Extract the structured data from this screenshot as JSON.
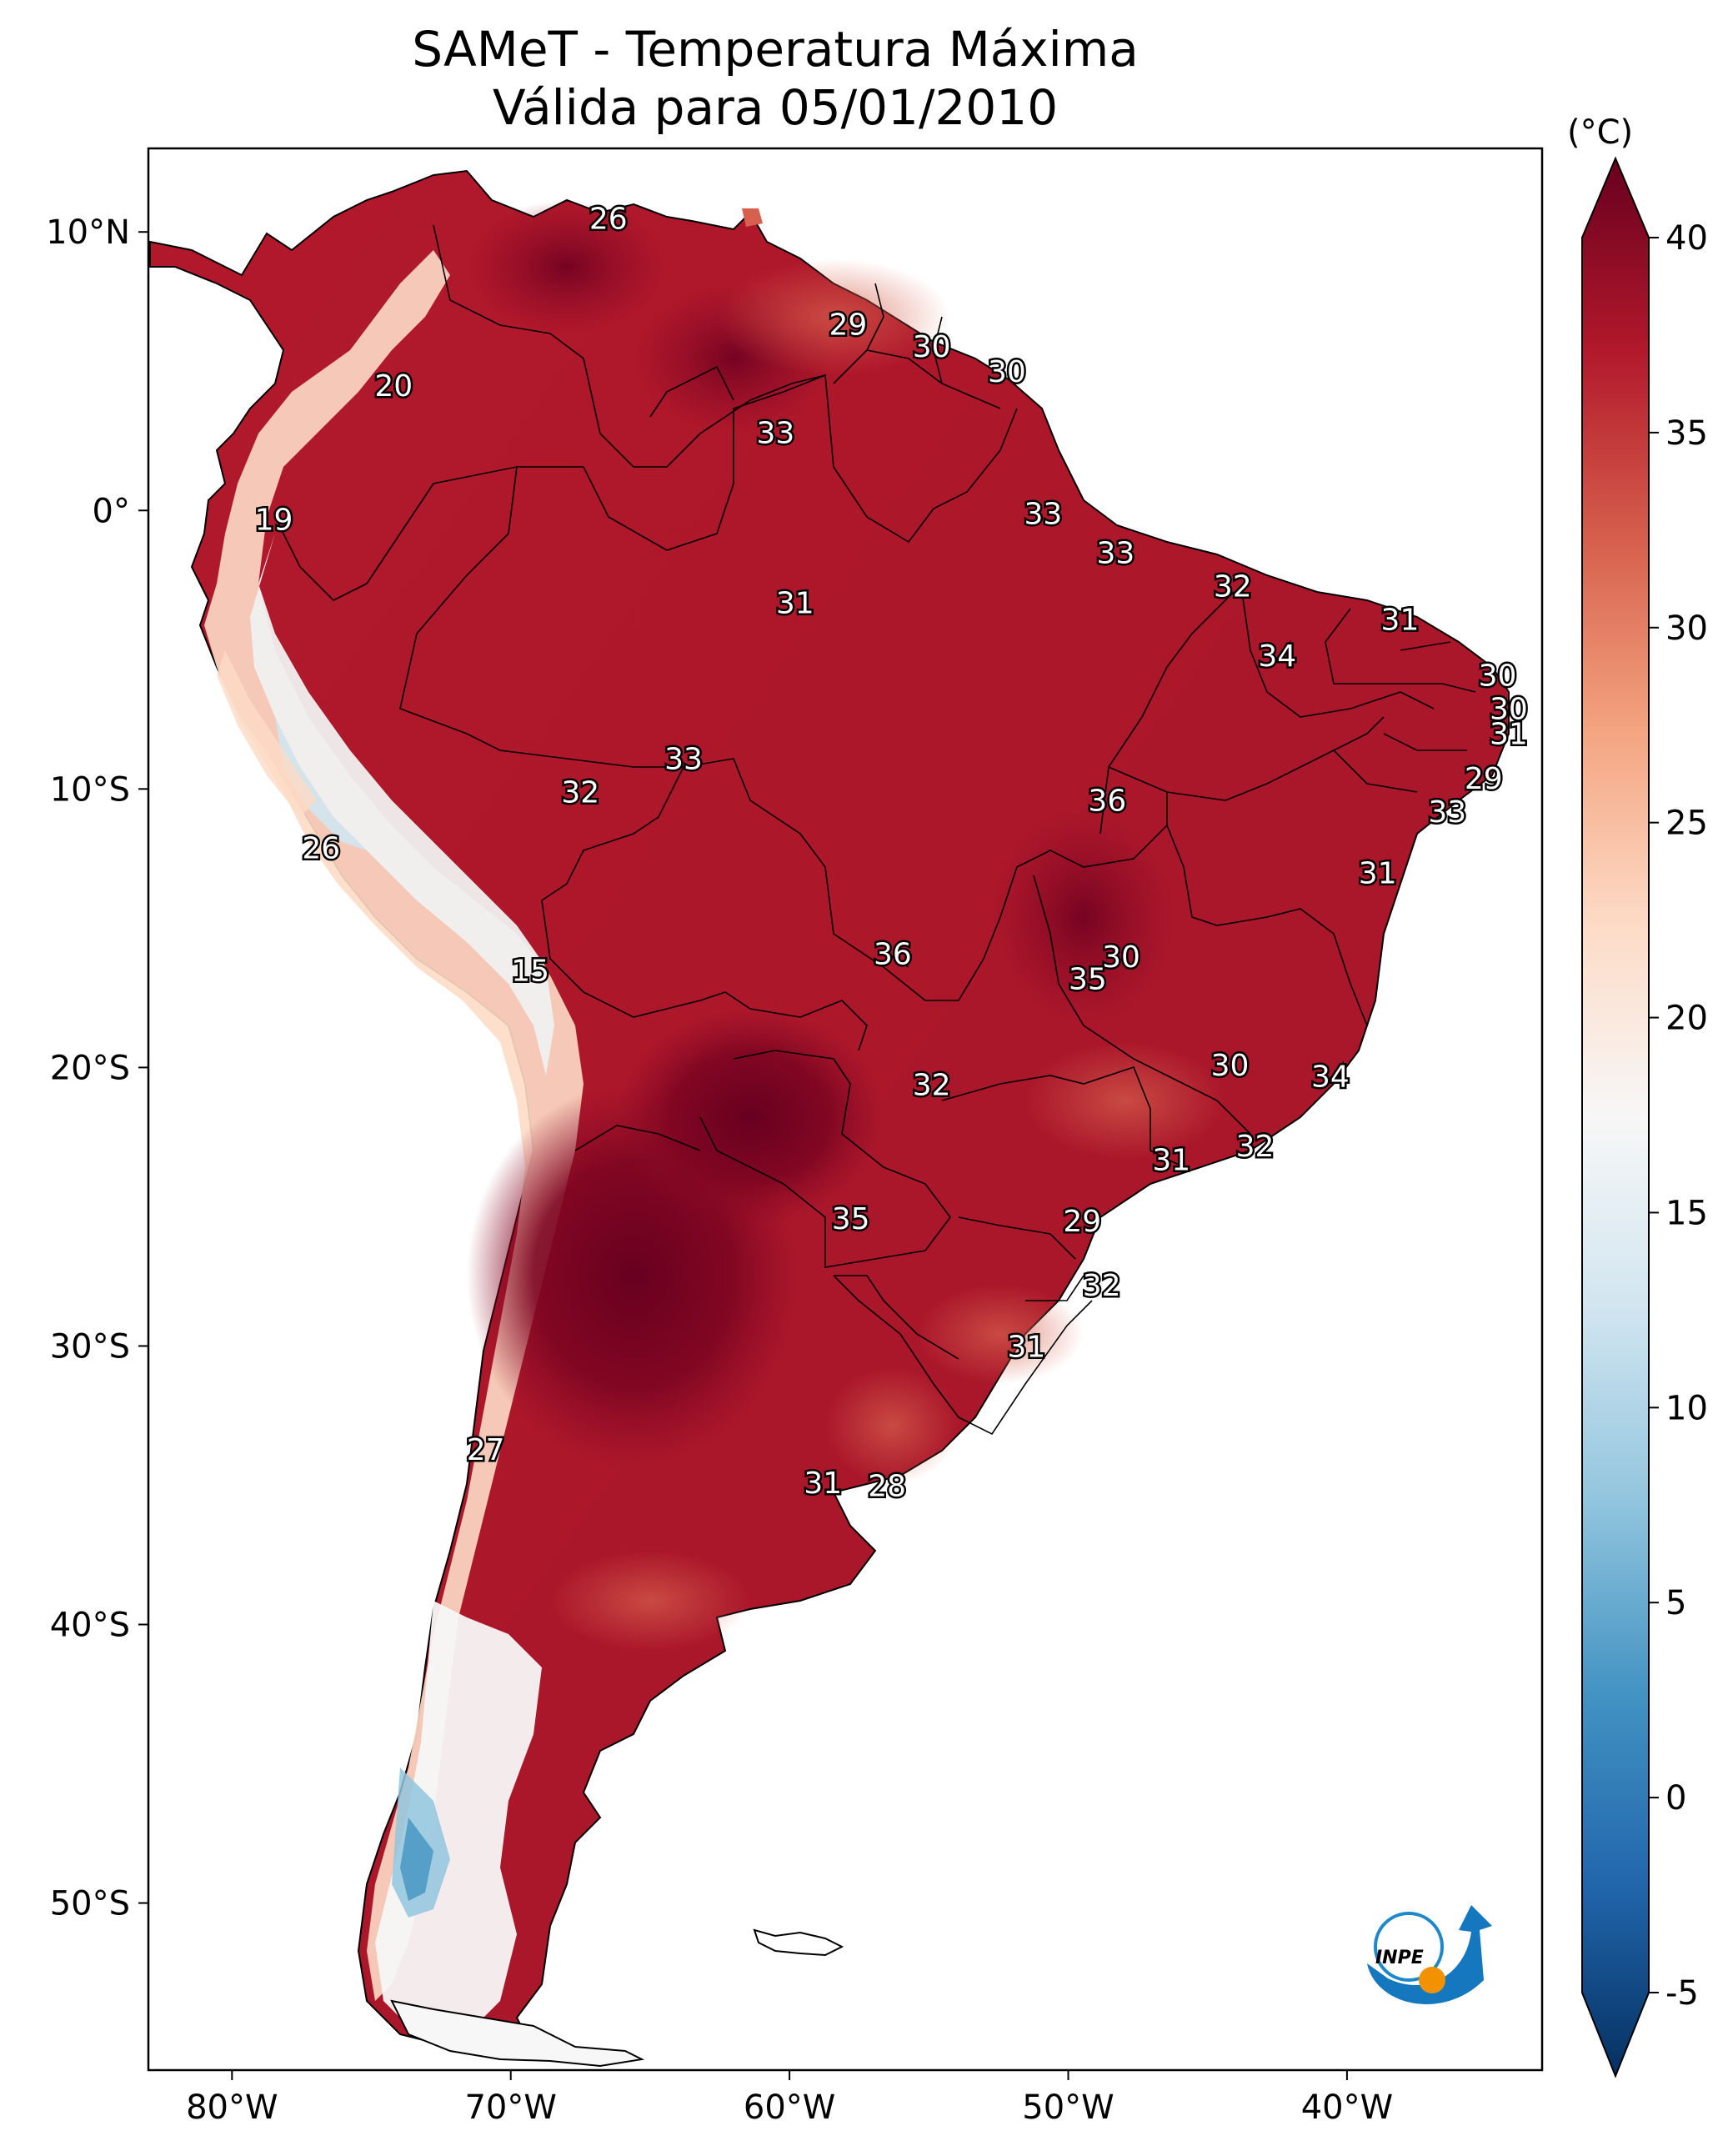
{
  "title": "SAMeT - Temperatura Máxima",
  "subtitle": "Válida para 05/01/2010",
  "colorbar": {
    "unit": "(°C)",
    "ticks": [
      40,
      35,
      30,
      25,
      20,
      15,
      10,
      5,
      0,
      -5
    ],
    "tick_labels": [
      "40",
      "35",
      "30",
      "25",
      "20",
      "15",
      "10",
      "5",
      "0",
      "-5"
    ],
    "range": [
      -5,
      40
    ],
    "colors": [
      "#053061",
      "#2166ac",
      "#4393c3",
      "#92c5de",
      "#d1e5f0",
      "#f7f7f7",
      "#fddbc7",
      "#f4a582",
      "#d6604d",
      "#b2182b",
      "#67001f"
    ]
  },
  "axes": {
    "lon_labels": [
      "80°W",
      "70°W",
      "60°W",
      "50°W",
      "40°W"
    ],
    "lon_values": [
      -80,
      -70,
      -60,
      -50,
      -40
    ],
    "lat_labels": [
      "10°N",
      "0°",
      "10°S",
      "20°S",
      "30°S",
      "40°S",
      "50°S"
    ],
    "lat_values": [
      10,
      0,
      -10,
      -20,
      -30,
      -40,
      -50
    ],
    "lon_range": [
      -83,
      -33
    ],
    "lat_range": [
      -56,
      13
    ]
  },
  "contour_labels": [
    {
      "text": "26",
      "lon": -66.5,
      "lat": 10.5
    },
    {
      "text": "29",
      "lon": -57.9,
      "lat": 6.7
    },
    {
      "text": "30",
      "lon": -54.9,
      "lat": 5.9
    },
    {
      "text": "30",
      "lon": -52.2,
      "lat": 5.0
    },
    {
      "text": "20",
      "lon": -74.2,
      "lat": 4.5
    },
    {
      "text": "33",
      "lon": -60.5,
      "lat": 2.8
    },
    {
      "text": "19",
      "lon": -78.5,
      "lat": -0.3
    },
    {
      "text": "33",
      "lon": -50.9,
      "lat": -0.1
    },
    {
      "text": "33",
      "lon": -48.3,
      "lat": -1.5
    },
    {
      "text": "32",
      "lon": -44.1,
      "lat": -2.7
    },
    {
      "text": "31",
      "lon": -59.8,
      "lat": -3.3
    },
    {
      "text": "31",
      "lon": -38.1,
      "lat": -3.9
    },
    {
      "text": "34",
      "lon": -42.5,
      "lat": -5.2
    },
    {
      "text": "30",
      "lon": -34.6,
      "lat": -5.9
    },
    {
      "text": "30",
      "lon": -34.2,
      "lat": -7.1
    },
    {
      "text": "31",
      "lon": -34.2,
      "lat": -8.0
    },
    {
      "text": "33",
      "lon": -63.8,
      "lat": -8.9
    },
    {
      "text": "32",
      "lon": -67.5,
      "lat": -10.1
    },
    {
      "text": "29",
      "lon": -35.1,
      "lat": -9.6
    },
    {
      "text": "36",
      "lon": -48.6,
      "lat": -10.4
    },
    {
      "text": "33",
      "lon": -36.4,
      "lat": -10.8
    },
    {
      "text": "26",
      "lon": -76.8,
      "lat": -12.1
    },
    {
      "text": "31",
      "lon": -38.9,
      "lat": -13.0
    },
    {
      "text": "36",
      "lon": -56.3,
      "lat": -15.9
    },
    {
      "text": "30",
      "lon": -48.1,
      "lat": -16.0
    },
    {
      "text": "35",
      "lon": -49.3,
      "lat": -16.8
    },
    {
      "text": "15",
      "lon": -69.3,
      "lat": -16.5
    },
    {
      "text": "30",
      "lon": -44.2,
      "lat": -19.9
    },
    {
      "text": "34",
      "lon": -40.6,
      "lat": -20.3
    },
    {
      "text": "32",
      "lon": -54.9,
      "lat": -20.6
    },
    {
      "text": "32",
      "lon": -43.3,
      "lat": -22.8
    },
    {
      "text": "31",
      "lon": -46.3,
      "lat": -23.3
    },
    {
      "text": "35",
      "lon": -57.8,
      "lat": -25.4
    },
    {
      "text": "29",
      "lon": -49.5,
      "lat": -25.5
    },
    {
      "text": "32",
      "lon": -48.8,
      "lat": -27.8
    },
    {
      "text": "31",
      "lon": -51.5,
      "lat": -30.0
    },
    {
      "text": "27",
      "lon": -70.9,
      "lat": -33.7
    },
    {
      "text": "31",
      "lon": -58.8,
      "lat": -34.9
    },
    {
      "text": "28",
      "lon": -56.5,
      "lat": -35.0
    }
  ],
  "logo": {
    "text": "INPE"
  }
}
